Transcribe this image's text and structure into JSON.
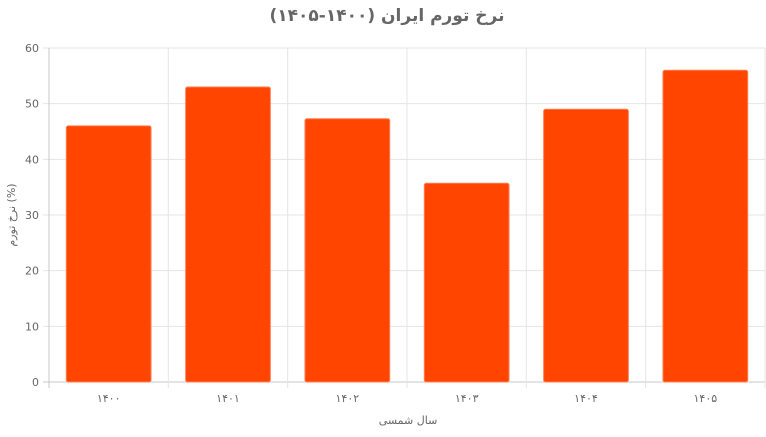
{
  "chart_data": {
    "type": "bar",
    "title": "نرخ تورم ایران (۱۴۰۰-۱۴۰۵)",
    "xlabel": "سال شمسی",
    "ylabel": "نرخ تورم (%)",
    "categories": [
      "۱۴۰۰",
      "۱۴۰۱",
      "۱۴۰۲",
      "۱۴۰۳",
      "۱۴۰۴",
      "۱۴۰۵"
    ],
    "values": [
      46,
      53,
      47.3,
      35.7,
      49,
      56
    ],
    "ylim": [
      0,
      60
    ],
    "yticks": [
      0,
      10,
      20,
      30,
      40,
      50,
      60
    ],
    "grid": true,
    "legend": "none",
    "colors": {
      "bar_fill": "#ff4500",
      "bar_border": "#ff7f50"
    }
  }
}
